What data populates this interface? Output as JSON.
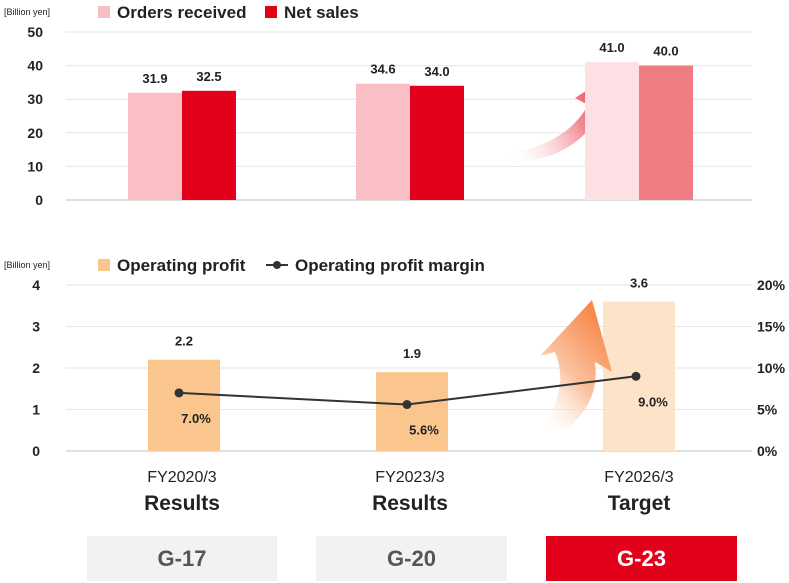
{
  "colors": {
    "orders": "#f9bfc5",
    "net_sales": "#e3001b",
    "orders_target": "#fde0e3",
    "net_sales_target": "#ef7b83",
    "op_profit": "#fbc58e",
    "op_profit_target": "#fde3c8",
    "margin_line": "#333333",
    "plan_box_grey": "#f2f2f2",
    "plan_box_red": "#e3001b",
    "arrow_top": "#e3001b",
    "arrow_bottom": "#f7884a"
  },
  "chart_data": [
    {
      "type": "bar",
      "unit_label": "[Billion yen]",
      "categories": [
        "FY2020/3",
        "FY2023/3",
        "FY2026/3"
      ],
      "series": [
        {
          "name": "Orders received",
          "values": [
            31.9,
            34.6,
            41.0
          ],
          "labels": [
            "31.9",
            "34.6",
            "41.0"
          ]
        },
        {
          "name": "Net sales",
          "values": [
            32.5,
            34.0,
            40.0
          ],
          "labels": [
            "32.5",
            "34.0",
            "40.0"
          ]
        }
      ],
      "ylim": [
        0,
        50
      ],
      "yticks": [
        "0",
        "10",
        "20",
        "30",
        "40",
        "50"
      ],
      "grid": true,
      "legend": "top"
    },
    {
      "type": "bar",
      "unit_label": "[Billion yen]",
      "categories": [
        "FY2020/3",
        "FY2023/3",
        "FY2026/3"
      ],
      "series": [
        {
          "name": "Operating profit",
          "values": [
            2.2,
            1.9,
            3.6
          ],
          "labels": [
            "2.2",
            "1.9",
            "3.6"
          ],
          "axis": "left"
        },
        {
          "name": "Operating profit margin",
          "type": "line",
          "values": [
            7.0,
            5.6,
            9.0
          ],
          "labels": [
            "7.0%",
            "5.6%",
            "9.0%"
          ],
          "axis": "right"
        }
      ],
      "ylim": [
        0,
        4
      ],
      "yticks": [
        "0",
        "1",
        "2",
        "3",
        "4"
      ],
      "y2lim": [
        0,
        20
      ],
      "y2ticks": [
        "0%",
        "5%",
        "10%",
        "15%",
        "20%"
      ],
      "grid": true,
      "legend": "top"
    }
  ],
  "x_axis": {
    "periods": [
      {
        "year": "FY2020/3",
        "kind": "Results"
      },
      {
        "year": "FY2023/3",
        "kind": "Results"
      },
      {
        "year": "FY2026/3",
        "kind": "Target"
      }
    ]
  },
  "plans": [
    {
      "label": "G-17",
      "highlight": false
    },
    {
      "label": "G-20",
      "highlight": false
    },
    {
      "label": "G-23",
      "highlight": true
    }
  ]
}
